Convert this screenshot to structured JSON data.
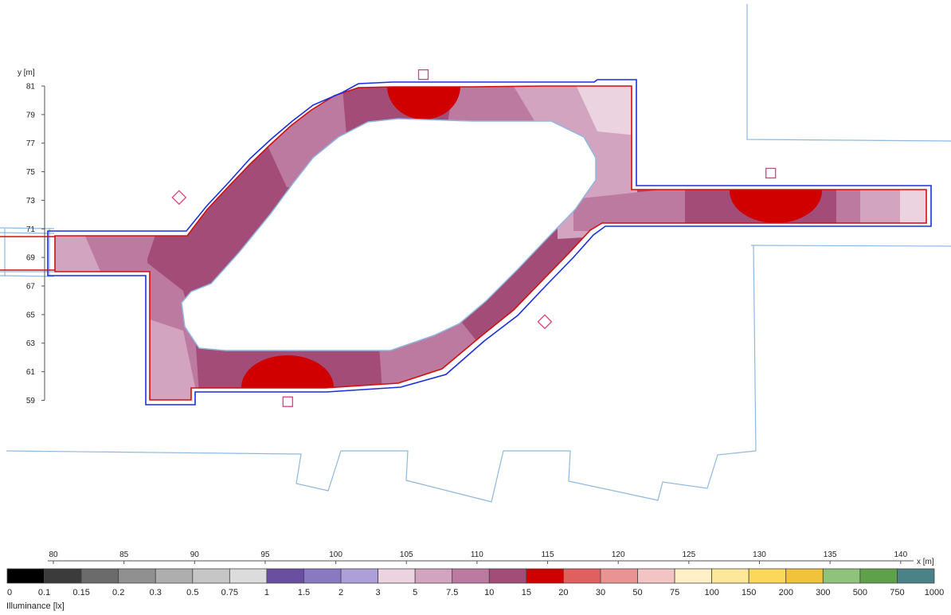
{
  "chart_data": {
    "type": "heatmap",
    "title": "",
    "xlabel": "x [m]",
    "ylabel": "y [m]",
    "xlim": [
      78,
      141
    ],
    "ylim": [
      56,
      83
    ],
    "x_ticks": [
      80,
      85,
      90,
      95,
      100,
      105,
      110,
      115,
      120,
      125,
      130,
      135,
      140
    ],
    "y_ticks": [
      59,
      61,
      63,
      65,
      67,
      69,
      71,
      73,
      75,
      77,
      79,
      81
    ],
    "legend": {
      "title": "Illuminance [lx]",
      "placement": "bottom",
      "bins": [
        {
          "from": "0",
          "color": "#000000"
        },
        {
          "from": "0.1",
          "color": "#3b3b3b"
        },
        {
          "from": "0.15",
          "color": "#6b6b6b"
        },
        {
          "from": "0.2",
          "color": "#909090"
        },
        {
          "from": "0.3",
          "color": "#aeaeae"
        },
        {
          "from": "0.5",
          "color": "#c6c6c6"
        },
        {
          "from": "0.75",
          "color": "#dcdcdc"
        },
        {
          "from": "1",
          "color": "#6a4fa0"
        },
        {
          "from": "1.5",
          "color": "#8a78c2"
        },
        {
          "from": "2",
          "color": "#ad9fd8"
        },
        {
          "from": "3",
          "color": "#ecd3e0"
        },
        {
          "from": "5",
          "color": "#d3a4bf"
        },
        {
          "from": "7.5",
          "color": "#bd7aa1"
        },
        {
          "from": "10",
          "color": "#a34c78"
        },
        {
          "from": "15",
          "color": "#d00000"
        },
        {
          "from": "20",
          "color": "#e06060"
        },
        {
          "from": "30",
          "color": "#e99393"
        },
        {
          "from": "50",
          "color": "#f3c4c4"
        },
        {
          "from": "75",
          "color": "#fff0c8"
        },
        {
          "from": "100",
          "color": "#fde89a"
        },
        {
          "from": "150",
          "color": "#fcd85a"
        },
        {
          "from": "200",
          "color": "#f0c33a"
        },
        {
          "from": "300",
          "color": "#8fc27a"
        },
        {
          "from": "500",
          "color": "#5fa04a"
        },
        {
          "from": "750",
          "color": "#4a8288"
        },
        {
          "from": "1000",
          "color": "#3b87c8"
        }
      ]
    },
    "colors": {
      "outer_boundary": "#1a2ee0",
      "inner_boundary": "#d01010",
      "building_outline": "#8fb8e0",
      "luminaire_marker": "#e0407a"
    },
    "luminaires": [
      {
        "x": 106.2,
        "y": 81.8
      },
      {
        "x": 88.9,
        "y": 73.2
      },
      {
        "x": 130.8,
        "y": 74.9
      },
      {
        "x": 114.8,
        "y": 64.5
      },
      {
        "x": 96.6,
        "y": 58.9
      }
    ]
  }
}
